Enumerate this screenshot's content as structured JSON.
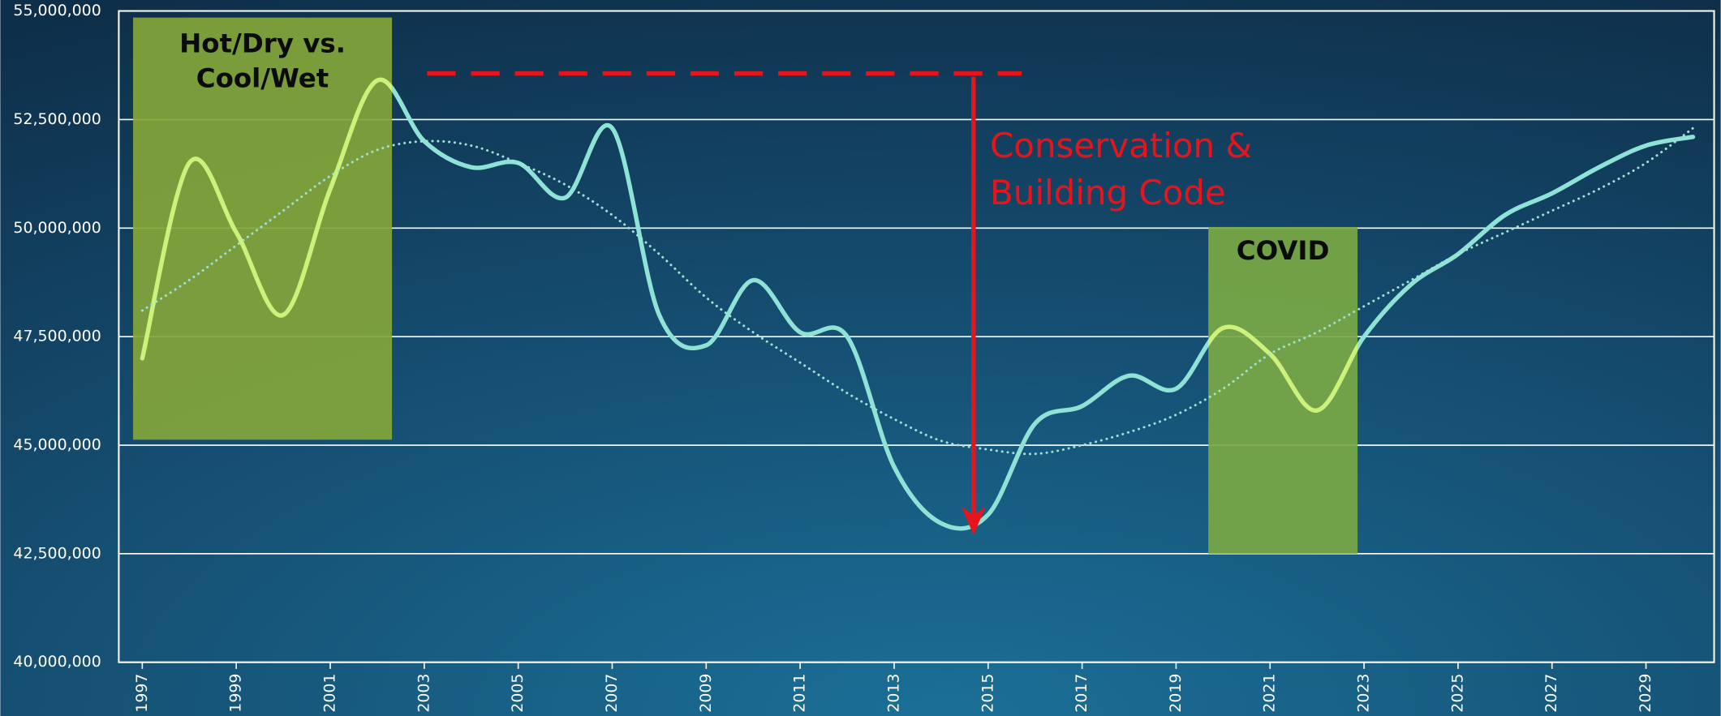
{
  "chart_data": {
    "type": "line",
    "x": [
      1997,
      1998,
      1999,
      2000,
      2001,
      2002,
      2003,
      2004,
      2005,
      2006,
      2007,
      2008,
      2009,
      2010,
      2011,
      2012,
      2013,
      2014,
      2015,
      2016,
      2017,
      2018,
      2019,
      2020,
      2021,
      2022,
      2023,
      2024,
      2025,
      2026,
      2027,
      2028,
      2029,
      2030
    ],
    "series": [
      {
        "color": "#8fe3d6",
        "values": [
          47000000,
          51500000,
          49900000,
          48000000,
          50900000,
          53400000,
          52000000,
          51400000,
          51500000,
          50700000,
          52300000,
          48000000,
          47300000,
          48800000,
          47600000,
          47500000,
          44500000,
          43200000,
          43400000,
          45500000,
          45900000,
          46600000,
          46300000,
          47700000,
          47100000,
          45800000,
          47500000,
          48700000,
          49400000,
          50300000,
          50800000,
          51400000,
          51900000,
          52100000
        ]
      },
      {
        "color": "#9fe3d6",
        "dotted": true,
        "values": [
          48100000,
          48800000,
          49600000,
          50400000,
          51200000,
          51800000,
          52000000,
          51900000,
          51500000,
          51000000,
          50300000,
          49400000,
          48400000,
          47600000,
          46900000,
          46200000,
          45600000,
          45100000,
          44900000,
          44800000,
          45000000,
          45300000,
          45700000,
          46300000,
          47100000,
          47600000,
          48200000,
          48800000,
          49400000,
          49900000,
          50400000,
          50900000,
          51500000,
          52300000
        ]
      }
    ],
    "xlim": [
      1996.5,
      2030.45
    ],
    "xticks": [
      1997,
      1999,
      2001,
      2003,
      2005,
      2007,
      2009,
      2011,
      2013,
      2015,
      2017,
      2019,
      2021,
      2023,
      2025,
      2027,
      2029
    ],
    "ylim": [
      40000000,
      55000000
    ],
    "yticks": [
      {
        "value": 40000000,
        "label": "40,000,000"
      },
      {
        "value": 42500000,
        "label": "42,500,000"
      },
      {
        "value": 45000000,
        "label": "45,000,000"
      },
      {
        "value": 47500000,
        "label": "47,500,000"
      },
      {
        "value": 50000000,
        "label": "50,000,000"
      },
      {
        "value": 52500000,
        "label": "52,500,000"
      },
      {
        "value": 55000000,
        "label": "55,000,000"
      }
    ],
    "grid": true,
    "annotations": [
      "Hot/Dry vs.",
      "Cool/Wet",
      "Conservation &",
      "Building Code",
      "COVID"
    ]
  }
}
